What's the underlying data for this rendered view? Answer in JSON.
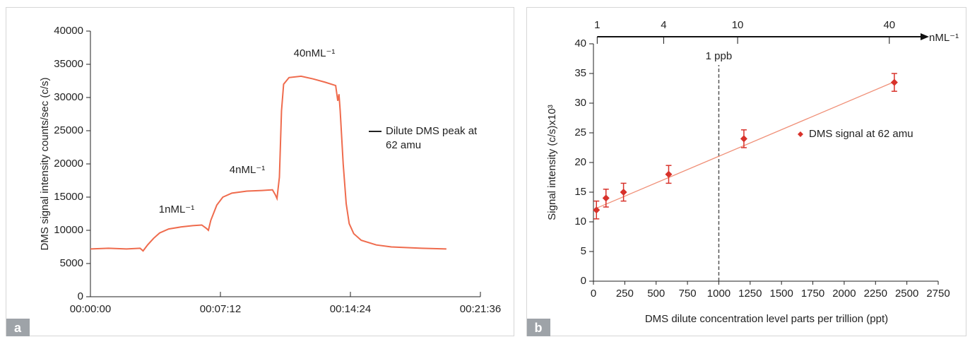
{
  "chart_data": [
    {
      "type": "line",
      "panel_label": "a",
      "ylabel": "DMS signal intensity counts/sec (c/s)",
      "annotations": [
        "1nML⁻¹",
        "4nML⁻¹",
        "40nML⁻¹"
      ],
      "x": [
        0,
        60,
        120,
        165,
        175,
        190,
        210,
        230,
        260,
        300,
        340,
        370,
        385,
        392,
        400,
        420,
        440,
        470,
        520,
        570,
        605,
        615,
        620,
        628,
        635,
        642,
        660,
        700,
        740,
        780,
        815,
        822,
        826,
        830,
        840,
        850,
        860,
        875,
        900,
        950,
        1000,
        1100,
        1183
      ],
      "series": [
        {
          "name": "Dilute DMS peak at 62 amu",
          "color": "#ef6b4d",
          "values": [
            7200,
            7300,
            7200,
            7300,
            6900,
            7800,
            8800,
            9600,
            10200,
            10500,
            10700,
            10800,
            10300,
            10000,
            11500,
            13800,
            15000,
            15600,
            15900,
            16000,
            16100,
            15300,
            14800,
            18000,
            28000,
            32000,
            33000,
            33200,
            32800,
            32300,
            31800,
            29500,
            30500,
            28000,
            20000,
            14000,
            11000,
            9500,
            8500,
            7800,
            7500,
            7300,
            7200
          ]
        }
      ],
      "xlim": [
        0,
        1296
      ],
      "xticks": [
        {
          "value": 0,
          "label": "00:00:00"
        },
        {
          "value": 432,
          "label": "00:07:12"
        },
        {
          "value": 864,
          "label": "00:14:24"
        },
        {
          "value": 1296,
          "label": "00:21:36"
        }
      ],
      "ylim": [
        0,
        40000
      ],
      "yticks": [
        0,
        5000,
        10000,
        15000,
        20000,
        25000,
        30000,
        35000,
        40000
      ]
    },
    {
      "type": "scatter",
      "panel_label": "b",
      "xlabel": "DMS dilute concentration level parts per trillion (ppt)",
      "ylabel": "Signal intensity (c/s)x10³",
      "x": [
        24,
        100,
        240,
        600,
        1200,
        2400
      ],
      "series": [
        {
          "name": "DMS signal at 62 amu",
          "color": "#d8322b",
          "values": [
            12,
            14,
            15,
            18,
            24,
            33.5
          ],
          "errors": [
            1.5,
            1.5,
            1.5,
            1.5,
            1.5,
            1.5
          ]
        }
      ],
      "fit": {
        "color": "#f09078",
        "x": [
          24,
          2400
        ],
        "values": [
          12.3,
          33.6
        ]
      },
      "xlim": [
        0,
        2750
      ],
      "xticks": [
        0,
        250,
        500,
        750,
        1000,
        1250,
        1500,
        1750,
        2000,
        2250,
        2500,
        2750
      ],
      "ylim": [
        0,
        40
      ],
      "yticks": [
        0,
        5,
        10,
        15,
        20,
        25,
        30,
        35,
        40
      ],
      "top_axis": {
        "label": "nML⁻¹",
        "ticks": [
          {
            "value": 30,
            "label": "1"
          },
          {
            "value": 560,
            "label": "4"
          },
          {
            "value": 1150,
            "label": "10"
          },
          {
            "value": 2360,
            "label": "40"
          }
        ]
      },
      "reference_line": {
        "x": 1000,
        "label": "1 ppb"
      }
    }
  ]
}
